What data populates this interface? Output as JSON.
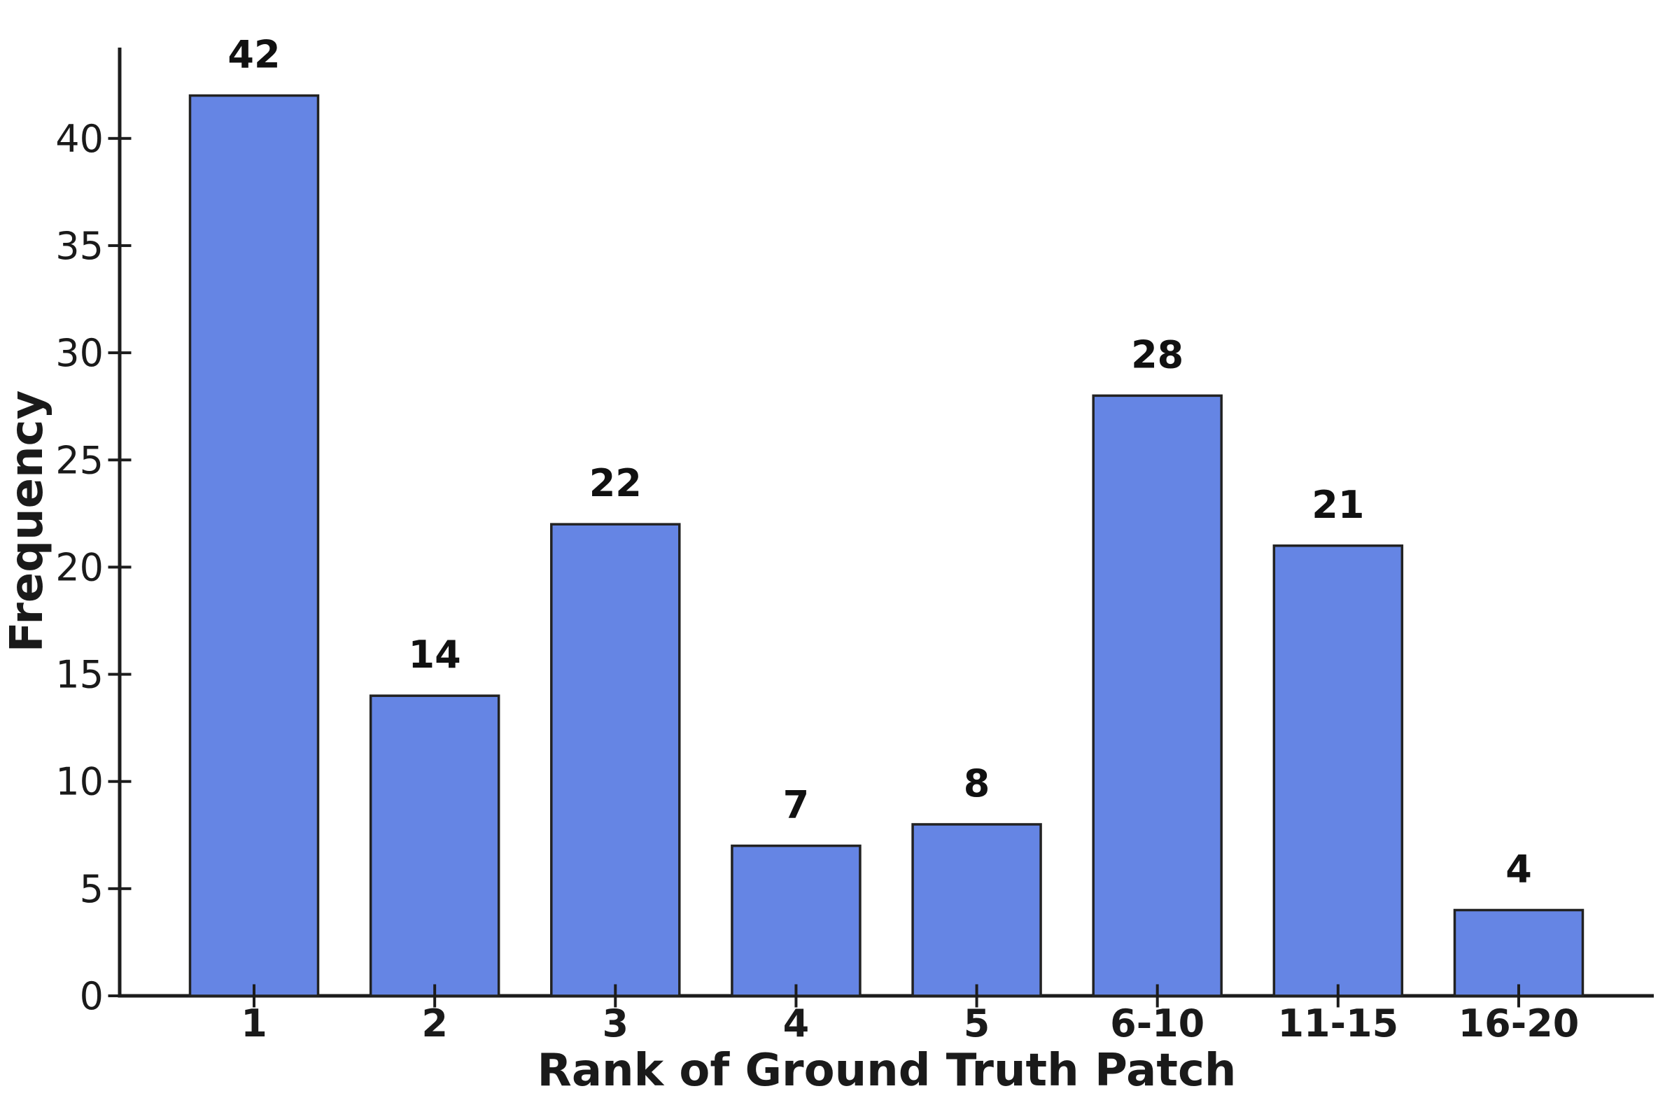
{
  "chart_data": {
    "type": "bar",
    "title": "",
    "xlabel": "Rank of Ground Truth Patch",
    "ylabel": "Frequency",
    "categories": [
      "1",
      "2",
      "3",
      "4",
      "5",
      "6-10",
      "11-15",
      "16-20"
    ],
    "values": [
      42,
      14,
      22,
      7,
      8,
      28,
      21,
      4
    ],
    "bar_value_labels": [
      "42",
      "14",
      "22",
      "7",
      "8",
      "28",
      "21",
      "4"
    ],
    "yticks": [
      0,
      5,
      10,
      15,
      20,
      25,
      30,
      35,
      40
    ],
    "ylim": [
      0,
      44.3
    ],
    "grid": false,
    "legend_position": "none",
    "bar_color": "#6585e4",
    "bar_edge_color": "#222222",
    "axis_color": "#1c1c1c",
    "text_color": "#1a1a1a",
    "background_color": "#ffffff"
  }
}
